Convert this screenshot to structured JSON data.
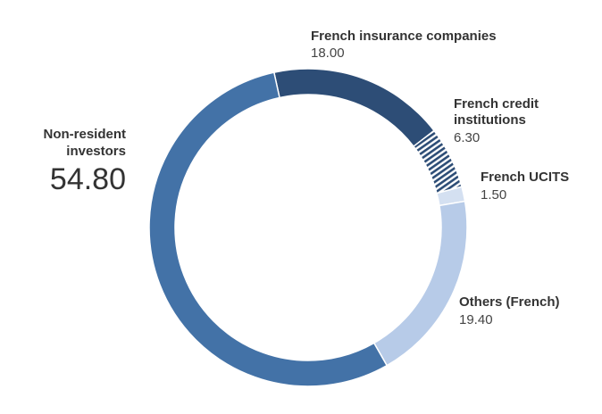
{
  "chart_data": {
    "type": "pie",
    "donut": true,
    "title": "",
    "unit": "",
    "slices": [
      {
        "name": "French insurance companies",
        "value": 18.0,
        "display": "18.00",
        "color": "#2d4d76",
        "pattern": "none"
      },
      {
        "name": "French credit institutions",
        "name_lines": [
          "French credit",
          "institutions"
        ],
        "value": 6.3,
        "display": "6.30",
        "color": "#2d4d76",
        "pattern": "hatched"
      },
      {
        "name": "French UCITS",
        "value": 1.5,
        "display": "1.50",
        "color": "#d4e0f1",
        "pattern": "none"
      },
      {
        "name": "Others (French)",
        "value": 19.4,
        "display": "19.40",
        "color": "#b7cbe8",
        "pattern": "none"
      },
      {
        "name": "Non-resident investors",
        "name_lines": [
          "Non-resident",
          "investors"
        ],
        "value": 54.8,
        "display": "54.80",
        "color": "#4372a7",
        "pattern": "none"
      }
    ]
  }
}
